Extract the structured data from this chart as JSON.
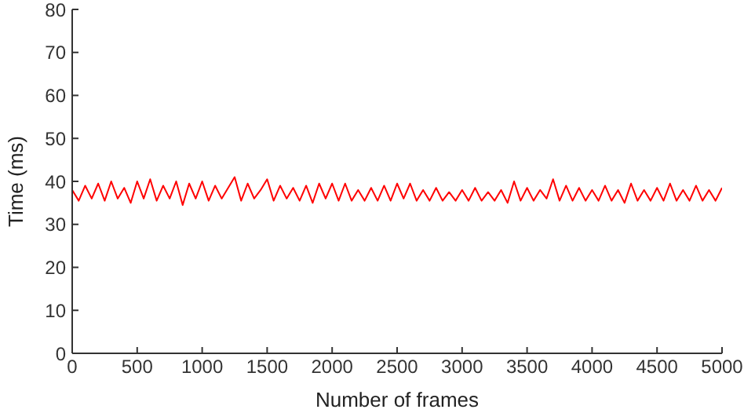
{
  "chart_data": {
    "type": "line",
    "xlabel": "Number of frames",
    "ylabel": "Time (ms)",
    "xlim": [
      0,
      5000
    ],
    "xticks": [
      0,
      500,
      1000,
      1500,
      2000,
      2500,
      3000,
      3500,
      4000,
      4500,
      5000
    ],
    "ylim": [
      0,
      80
    ],
    "yticks": [
      0,
      10,
      20,
      30,
      40,
      50,
      60,
      70,
      80
    ],
    "grid": false,
    "legend": false,
    "marker": "none",
    "line_style": "solid",
    "x": [
      0,
      50,
      100,
      150,
      200,
      250,
      300,
      350,
      400,
      450,
      500,
      550,
      600,
      650,
      700,
      750,
      800,
      850,
      900,
      950,
      1000,
      1050,
      1100,
      1150,
      1200,
      1250,
      1300,
      1350,
      1400,
      1450,
      1500,
      1550,
      1600,
      1650,
      1700,
      1750,
      1800,
      1850,
      1900,
      1950,
      2000,
      2050,
      2100,
      2150,
      2200,
      2250,
      2300,
      2350,
      2400,
      2450,
      2500,
      2550,
      2600,
      2650,
      2700,
      2750,
      2800,
      2850,
      2900,
      2950,
      3000,
      3050,
      3100,
      3150,
      3200,
      3250,
      3300,
      3350,
      3400,
      3450,
      3500,
      3550,
      3600,
      3650,
      3700,
      3750,
      3800,
      3850,
      3900,
      3950,
      4000,
      4050,
      4100,
      4150,
      4200,
      4250,
      4300,
      4350,
      4400,
      4450,
      4500,
      4550,
      4600,
      4650,
      4700,
      4750,
      4800,
      4850,
      4900,
      4950,
      5000
    ],
    "series": [
      {
        "color": "#ff0000",
        "values": [
          38,
          35.5,
          39,
          36,
          39.5,
          35.5,
          40,
          36,
          38.5,
          35,
          40,
          36,
          40.5,
          35.5,
          39,
          36,
          40,
          34.5,
          39.5,
          36,
          40,
          35.5,
          39,
          36,
          38.5,
          41,
          35.5,
          39.5,
          36,
          38,
          40.5,
          35.5,
          39,
          36,
          38.5,
          35.5,
          39,
          35,
          39.5,
          36,
          39.5,
          35.5,
          39.5,
          35.5,
          38,
          35.5,
          38.5,
          35.5,
          39,
          35.5,
          39.5,
          36,
          39.5,
          35.5,
          38,
          35.5,
          38.5,
          35.5,
          37.5,
          35.5,
          38,
          35.5,
          38.5,
          35.5,
          37.5,
          35.5,
          38,
          35,
          40,
          35.5,
          38.5,
          35.5,
          38,
          36,
          40.5,
          35.5,
          39,
          35.5,
          38.5,
          35.5,
          38,
          35.5,
          39,
          35.5,
          38,
          35,
          39.5,
          35.5,
          38,
          35.5,
          38.5,
          35.5,
          39.5,
          35.5,
          38,
          35.5,
          39,
          35.5,
          38,
          35.5,
          38.5
        ]
      }
    ]
  }
}
